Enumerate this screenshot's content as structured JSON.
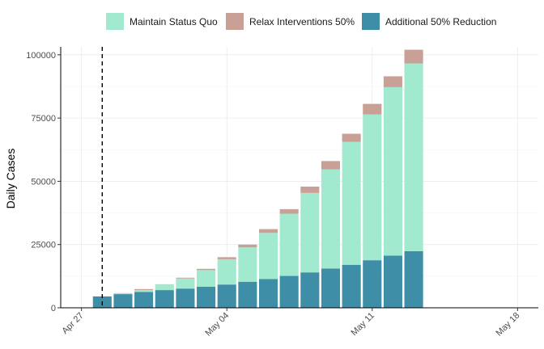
{
  "chart_data": {
    "type": "bar",
    "stacked": true,
    "title": "",
    "xlabel": "",
    "ylabel": "Daily Cases",
    "ylim": [
      0,
      100000
    ],
    "xlim": [
      "Apr 26",
      "May 19"
    ],
    "x_ticks": [
      "Apr 27",
      "May 04",
      "May 11",
      "May 18"
    ],
    "y_ticks": [
      "0",
      "25000",
      "50000",
      "75000",
      "100000"
    ],
    "grid": true,
    "legend_position": "top",
    "reference_line_date": "Apr 28",
    "categories": [
      "Apr 28",
      "Apr 29",
      "Apr 30",
      "May 01",
      "May 02",
      "May 03",
      "May 04",
      "May 05",
      "May 06",
      "May 07",
      "May 08",
      "May 09",
      "May 10",
      "May 11",
      "May 12",
      "May 13"
    ],
    "series": [
      {
        "name": "Additional 50% Reduction",
        "color": "#3f8ea8",
        "values": [
          4500,
          5400,
          6300,
          7000,
          7600,
          8300,
          9200,
          10300,
          11400,
          12600,
          14000,
          15500,
          17000,
          18800,
          20600,
          22400
        ]
      },
      {
        "name": "Maintain Status Quo",
        "color": "#a1e9cf",
        "values": [
          0,
          300,
          700,
          2200,
          4000,
          6600,
          10000,
          13600,
          18200,
          24600,
          31400,
          39200,
          48600,
          57600,
          66600,
          74200
        ]
      },
      {
        "name": "Relax Interventions 50%",
        "color": "#c9a096",
        "values": [
          0,
          100,
          400,
          100,
          300,
          500,
          800,
          1100,
          1500,
          1800,
          2500,
          3300,
          3200,
          4200,
          4300,
          5400
        ]
      }
    ],
    "legend_order": [
      "Maintain Status Quo",
      "Relax Interventions 50%",
      "Additional 50% Reduction"
    ]
  }
}
